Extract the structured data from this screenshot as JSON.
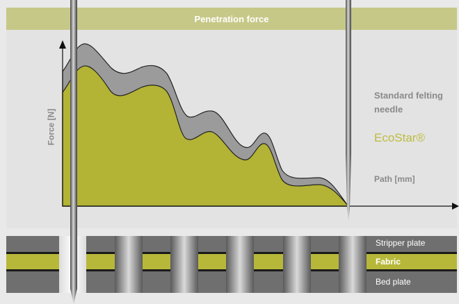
{
  "header": {
    "title": "Penetration force"
  },
  "chart": {
    "y_axis_label": "Force [N]",
    "x_axis_label": "Path [mm]",
    "legend_standard": "Standard felting needle",
    "legend_ecostar": "EcoStar®",
    "colors": {
      "standard": "#9b9b9b",
      "ecostar": "#b3b335",
      "fabric": "#b7b83a",
      "plate": "#6f6f6f"
    }
  },
  "layers": {
    "stripper": "Stripper plate",
    "fabric": "Fabric",
    "bed": "Bed plate"
  }
}
